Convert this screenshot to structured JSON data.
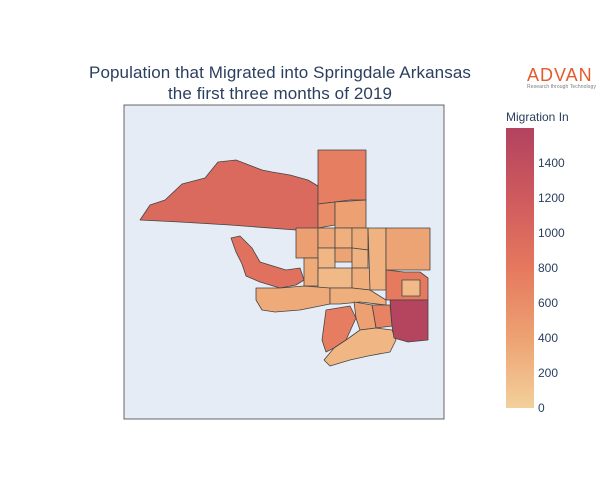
{
  "title_line_1": "Population that Migrated into Springdale Arkansas",
  "title_line_2": "the first three months of 2019",
  "logo": {
    "name": "ADVAN",
    "tagline": "Research through Technology",
    "color": "#e55a2b"
  },
  "colorbar": {
    "title": "Migration In",
    "min": 0,
    "max": 1600,
    "ticks": [
      "0",
      "200",
      "400",
      "600",
      "800",
      "1000",
      "1200",
      "1400"
    ],
    "colorscale": [
      "#f3d09b",
      "#eda272",
      "#e5785e",
      "#cf5a5e",
      "#b2435f"
    ]
  },
  "map": {
    "background": "#e5ecf6",
    "region_border": "#444444",
    "regions": [
      {
        "id": "northwest",
        "value": 1000
      },
      {
        "id": "north-top",
        "value": 740
      },
      {
        "id": "north-mid",
        "value": 600
      },
      {
        "id": "north-small",
        "value": 420
      },
      {
        "id": "west-wedge",
        "value": 900
      },
      {
        "id": "west-center",
        "value": 430
      },
      {
        "id": "center-1",
        "value": 350
      },
      {
        "id": "center-2",
        "value": 280
      },
      {
        "id": "center-3",
        "value": 310
      },
      {
        "id": "center-4",
        "value": 220
      },
      {
        "id": "center-5",
        "value": 380
      },
      {
        "id": "center-6",
        "value": 250
      },
      {
        "id": "center-7",
        "value": 330
      },
      {
        "id": "center-8",
        "value": 200
      },
      {
        "id": "center-9",
        "value": 300
      },
      {
        "id": "center-10",
        "value": 260
      },
      {
        "id": "east-upper",
        "value": 380
      },
      {
        "id": "east-mid",
        "value": 780
      },
      {
        "id": "east-small",
        "value": 180
      },
      {
        "id": "southwest",
        "value": 330
      },
      {
        "id": "south-center",
        "value": 290
      },
      {
        "id": "south-mid-1",
        "value": 700
      },
      {
        "id": "south-mid-2",
        "value": 420
      },
      {
        "id": "south-left",
        "value": 750
      },
      {
        "id": "south-bottom",
        "value": 220
      },
      {
        "id": "southeast-hot",
        "value": 1560
      }
    ]
  }
}
